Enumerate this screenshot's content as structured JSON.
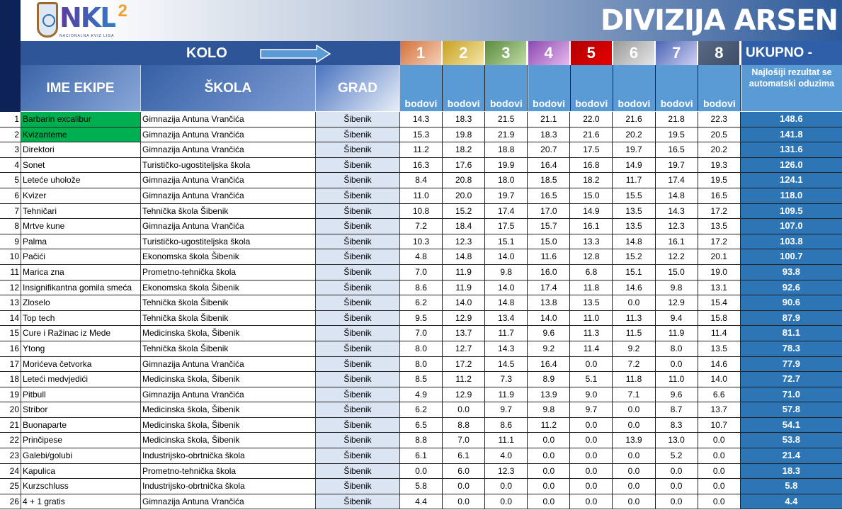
{
  "header": {
    "logo_text": "NKL",
    "logo_sup": "2",
    "logo_tagline": "NACIONALNA KVIZ LIGA",
    "title": "DIVIZIJA ARSEN"
  },
  "kolo": {
    "label": "KOLO"
  },
  "columns": {
    "name": "IME EKIPE",
    "school": "ŠKOLA",
    "city": "GRAD",
    "points": "bodovi",
    "total": "UKUPNO -",
    "total_note": "Najlošiji rezultat se automatski oduzima"
  },
  "rounds": [
    {
      "label": "1",
      "color": "#d4703a"
    },
    {
      "label": "2",
      "color": "#c8a020"
    },
    {
      "label": "3",
      "color": "#5a8a3c"
    },
    {
      "label": "4",
      "color": "#8a48b0"
    },
    {
      "label": "5",
      "color": "#b00000"
    },
    {
      "label": "6",
      "color": "#9a9a9a"
    },
    {
      "label": "7",
      "color": "#4a64b4"
    },
    {
      "label": "8",
      "color": "#5a6a84"
    }
  ],
  "colors": {
    "highlight": "#00b050",
    "total_bg": "#2e75b6",
    "header_bg": "#2d5597"
  },
  "rows": [
    {
      "n": "1",
      "name": "Barbarin excalibur",
      "school": "Gimnazija Antuna Vrančića",
      "city": "Šibenik",
      "scores": [
        "14.3",
        "18.3",
        "21.5",
        "21.1",
        "22.0",
        "21.6",
        "21.8",
        "22.3"
      ],
      "total": "148.6",
      "highlight": true
    },
    {
      "n": "2",
      "name": "Kvizanteme",
      "school": "Gimnazija Antuna Vrančića",
      "city": "Šibenik",
      "scores": [
        "15.3",
        "19.8",
        "21.9",
        "18.3",
        "21.6",
        "20.2",
        "19.5",
        "20.5"
      ],
      "total": "141.8",
      "highlight": true
    },
    {
      "n": "3",
      "name": "Direktori",
      "school": "Gimnazija Antuna Vrančića",
      "city": "Šibenik",
      "scores": [
        "11.2",
        "18.2",
        "18.8",
        "20.7",
        "17.5",
        "19.7",
        "16.5",
        "20.2"
      ],
      "total": "131.6"
    },
    {
      "n": "4",
      "name": "Sonet",
      "school": "Turističko-ugostiteljska škola",
      "city": "Šibenik",
      "scores": [
        "16.3",
        "17.6",
        "19.9",
        "16.4",
        "16.8",
        "14.9",
        "19.7",
        "19.3"
      ],
      "total": "126.0"
    },
    {
      "n": "5",
      "name": "Leteće uholože",
      "school": "Gimnazija Antuna Vrančića",
      "city": "Šibenik",
      "scores": [
        "8.4",
        "20.8",
        "18.0",
        "18.5",
        "18.2",
        "11.7",
        "17.4",
        "19.5"
      ],
      "total": "124.1"
    },
    {
      "n": "6",
      "name": "Kvizer",
      "school": "Gimnazija Antuna Vrančića",
      "city": "Šibenik",
      "scores": [
        "11.0",
        "20.0",
        "19.7",
        "16.5",
        "15.0",
        "15.5",
        "14.8",
        "16.5"
      ],
      "total": "118.0"
    },
    {
      "n": "7",
      "name": "Tehničari",
      "school": "Tehnička škola Šibenik",
      "city": "Šibenik",
      "scores": [
        "10.8",
        "15.2",
        "17.4",
        "17.0",
        "14.9",
        "13.5",
        "14.3",
        "17.2"
      ],
      "total": "109.5"
    },
    {
      "n": "8",
      "name": "Mrtve kune",
      "school": "Gimnazija Antuna Vrančića",
      "city": "Šibenik",
      "scores": [
        "7.2",
        "18.4",
        "17.5",
        "15.7",
        "16.1",
        "13.5",
        "12.3",
        "13.5"
      ],
      "total": "107.0"
    },
    {
      "n": "9",
      "name": "Palma",
      "school": "Turističko-ugostiteljska škola",
      "city": "Šibenik",
      "scores": [
        "10.3",
        "12.3",
        "15.1",
        "15.0",
        "13.3",
        "14.8",
        "16.1",
        "17.2"
      ],
      "total": "103.8"
    },
    {
      "n": "10",
      "name": "Pačići",
      "school": "Ekonomska škola Šibenik",
      "city": "Šibenik",
      "scores": [
        "4.8",
        "14.8",
        "14.0",
        "11.6",
        "12.8",
        "15.2",
        "12.2",
        "20.1"
      ],
      "total": "100.7"
    },
    {
      "n": "11",
      "name": "Marica zna",
      "school": "Prometno-tehnička škola",
      "city": "Šibenik",
      "scores": [
        "7.0",
        "11.9",
        "9.8",
        "16.0",
        "6.8",
        "15.1",
        "15.0",
        "19.0"
      ],
      "total": "93.8"
    },
    {
      "n": "12",
      "name": "Insignifikantna gomila smeća",
      "school": "Ekonomska škola Šibenik",
      "city": "Šibenik",
      "scores": [
        "8.6",
        "11.9",
        "14.0",
        "17.4",
        "11.8",
        "14.6",
        "9.8",
        "13.1"
      ],
      "total": "92.6"
    },
    {
      "n": "13",
      "name": "Zloselo",
      "school": "Tehnička škola Šibenik",
      "city": "Šibenik",
      "scores": [
        "6.2",
        "14.0",
        "14.8",
        "13.8",
        "13.5",
        "0.0",
        "12.9",
        "15.4"
      ],
      "total": "90.6"
    },
    {
      "n": "14",
      "name": "Top tech",
      "school": "Tehnička škola Šibenik",
      "city": "Šibenik",
      "scores": [
        "9.5",
        "12.9",
        "13.4",
        "14.0",
        "11.0",
        "11.3",
        "9.4",
        "15.8"
      ],
      "total": "87.9"
    },
    {
      "n": "15",
      "name": "Cure i Ražinac iz Mede",
      "school": "Medicinska škola, Šibenik",
      "city": "Šibenik",
      "scores": [
        "7.0",
        "13.7",
        "11.7",
        "9.6",
        "11.3",
        "11.5",
        "11.9",
        "11.4"
      ],
      "total": "81.1"
    },
    {
      "n": "16",
      "name": "Ytong",
      "school": "Tehnička škola Šibenik",
      "city": "Šibenik",
      "scores": [
        "8.0",
        "12.7",
        "14.3",
        "9.2",
        "11.4",
        "9.2",
        "8.0",
        "13.5"
      ],
      "total": "78.3"
    },
    {
      "n": "17",
      "name": "Morićeva četvorka",
      "school": "Gimnazija Antuna Vrančića",
      "city": "Šibenik",
      "scores": [
        "8.0",
        "17.2",
        "14.5",
        "16.4",
        "0.0",
        "7.2",
        "0.0",
        "14.6"
      ],
      "total": "77.9"
    },
    {
      "n": "18",
      "name": "Leteći medvjedići",
      "school": "Medicinska škola, Šibenik",
      "city": "Šibenik",
      "scores": [
        "8.5",
        "11.2",
        "7.3",
        "8.9",
        "5.1",
        "11.8",
        "11.0",
        "14.0"
      ],
      "total": "72.7"
    },
    {
      "n": "19",
      "name": "Pitbull",
      "school": "Gimnazija Antuna Vrančića",
      "city": "Šibenik",
      "scores": [
        "4.9",
        "12.9",
        "11.9",
        "13.9",
        "9.0",
        "7.1",
        "9.6",
        "6.6"
      ],
      "total": "71.0"
    },
    {
      "n": "20",
      "name": "Stribor",
      "school": "Medicinska škola, Šibenik",
      "city": "Šibenik",
      "scores": [
        "6.2",
        "0.0",
        "9.7",
        "9.8",
        "9.7",
        "0.0",
        "8.7",
        "13.7"
      ],
      "total": "57.8"
    },
    {
      "n": "21",
      "name": "Buonaparte",
      "school": "Medicinska škola, Šibenik",
      "city": "Šibenik",
      "scores": [
        "6.5",
        "8.8",
        "8.6",
        "11.2",
        "0.0",
        "0.0",
        "8.3",
        "10.7"
      ],
      "total": "54.1"
    },
    {
      "n": "22",
      "name": "Prinčipese",
      "school": "Medicinska škola, Šibenik",
      "city": "Šibenik",
      "scores": [
        "8.8",
        "7.0",
        "11.1",
        "0.0",
        "0.0",
        "13.9",
        "13.0",
        "0.0"
      ],
      "total": "53.8"
    },
    {
      "n": "23",
      "name": "Galebi/golubi",
      "school": "Industrijsko-obrtnička škola",
      "city": "Šibenik",
      "scores": [
        "6.1",
        "6.1",
        "4.0",
        "0.0",
        "0.0",
        "0.0",
        "5.2",
        "0.0"
      ],
      "total": "21.4"
    },
    {
      "n": "24",
      "name": "Kapulica",
      "school": "Prometno-tehnička škola",
      "city": "Šibenik",
      "scores": [
        "0.0",
        "6.0",
        "12.3",
        "0.0",
        "0.0",
        "0.0",
        "0.0",
        "0.0"
      ],
      "total": "18.3"
    },
    {
      "n": "25",
      "name": "Kurzschluss",
      "school": "Industrijsko-obrtnička škola",
      "city": "Šibenik",
      "scores": [
        "5.8",
        "0.0",
        "0.0",
        "0.0",
        "0.0",
        "0.0",
        "0.0",
        "0.0"
      ],
      "total": "5.8"
    },
    {
      "n": "26",
      "name": "4 + 1 gratis",
      "school": "Gimnazija Antuna Vrančića",
      "city": "Šibenik",
      "scores": [
        "4.4",
        "0.0",
        "0.0",
        "0.0",
        "0.0",
        "0.0",
        "0.0",
        "0.0"
      ],
      "total": "4.4"
    }
  ]
}
